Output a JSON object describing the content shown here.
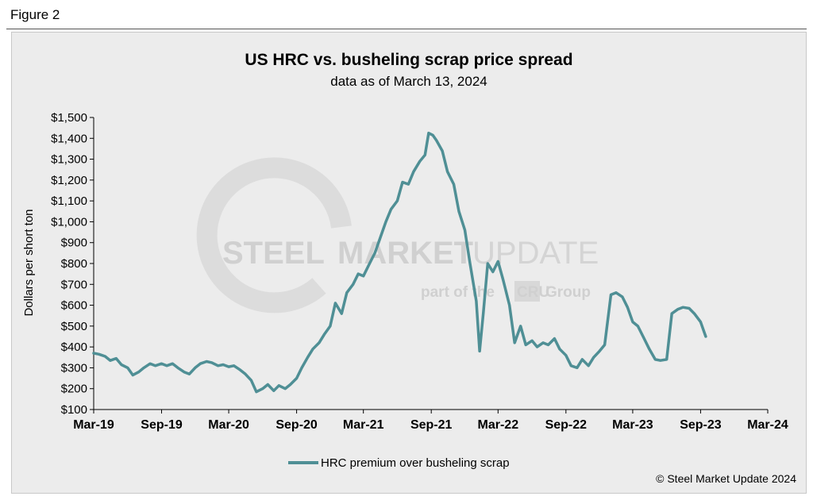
{
  "figure_label": "Figure 2",
  "copyright": "© Steel Market Update 2024",
  "watermark": {
    "brand_bold": "STEEL",
    "brand_mid": "MARKET",
    "brand_light": "UPDATE",
    "part_of": "part of the",
    "cru": "CRU",
    "group": "Group"
  },
  "colors": {
    "line": "#4f8f95",
    "panel": "#ececec"
  },
  "chart_data": {
    "type": "line",
    "title": "US HRC vs. busheling scrap price spread",
    "subtitle": "data as of March 13, 2024",
    "xlabel": "",
    "ylabel": "Dollars per short ton",
    "ylim": [
      100,
      1500
    ],
    "yticks": [
      100,
      200,
      300,
      400,
      500,
      600,
      700,
      800,
      900,
      1000,
      1100,
      1200,
      1300,
      1400,
      1500
    ],
    "ytick_labels": [
      "$100",
      "$200",
      "$300",
      "$400",
      "$500",
      "$600",
      "$700",
      "$800",
      "$900",
      "$1,000",
      "$1,100",
      "$1,200",
      "$1,300",
      "$1,400",
      "$1,500"
    ],
    "xlim": [
      "2019-03",
      "2024-03"
    ],
    "xticks": [
      "2019-03",
      "2019-09",
      "2020-03",
      "2020-09",
      "2021-03",
      "2021-09",
      "2022-03",
      "2022-09",
      "2023-03",
      "2023-09",
      "2024-03"
    ],
    "xtick_labels": [
      "Mar-19",
      "Sep-19",
      "Mar-20",
      "Sep-20",
      "Mar-21",
      "Sep-21",
      "Mar-22",
      "Sep-22",
      "Mar-23",
      "Sep-23",
      "Mar-24"
    ],
    "grid": false,
    "legend_position": "bottom-center",
    "series": [
      {
        "name": "HRC premium over busheling scrap",
        "color": "#4f8f95",
        "points": [
          [
            "2019-03-01",
            370
          ],
          [
            "2019-03-15",
            365
          ],
          [
            "2019-04-01",
            355
          ],
          [
            "2019-04-15",
            335
          ],
          [
            "2019-05-01",
            345
          ],
          [
            "2019-05-15",
            315
          ],
          [
            "2019-06-01",
            300
          ],
          [
            "2019-06-15",
            265
          ],
          [
            "2019-07-01",
            280
          ],
          [
            "2019-07-15",
            300
          ],
          [
            "2019-08-01",
            320
          ],
          [
            "2019-08-15",
            310
          ],
          [
            "2019-09-01",
            320
          ],
          [
            "2019-09-15",
            310
          ],
          [
            "2019-10-01",
            320
          ],
          [
            "2019-10-15",
            300
          ],
          [
            "2019-11-01",
            280
          ],
          [
            "2019-11-15",
            270
          ],
          [
            "2019-12-01",
            300
          ],
          [
            "2019-12-15",
            320
          ],
          [
            "2020-01-01",
            330
          ],
          [
            "2020-01-15",
            325
          ],
          [
            "2020-02-01",
            310
          ],
          [
            "2020-02-15",
            315
          ],
          [
            "2020-03-01",
            305
          ],
          [
            "2020-03-15",
            310
          ],
          [
            "2020-04-01",
            290
          ],
          [
            "2020-04-15",
            270
          ],
          [
            "2020-05-01",
            240
          ],
          [
            "2020-05-15",
            185
          ],
          [
            "2020-06-01",
            200
          ],
          [
            "2020-06-15",
            220
          ],
          [
            "2020-07-01",
            190
          ],
          [
            "2020-07-15",
            215
          ],
          [
            "2020-08-01",
            200
          ],
          [
            "2020-08-15",
            220
          ],
          [
            "2020-09-01",
            250
          ],
          [
            "2020-09-15",
            300
          ],
          [
            "2020-10-01",
            350
          ],
          [
            "2020-10-15",
            390
          ],
          [
            "2020-11-01",
            420
          ],
          [
            "2020-11-15",
            460
          ],
          [
            "2020-12-01",
            500
          ],
          [
            "2020-12-15",
            610
          ],
          [
            "2021-01-01",
            560
          ],
          [
            "2021-01-15",
            660
          ],
          [
            "2021-02-01",
            700
          ],
          [
            "2021-02-15",
            750
          ],
          [
            "2021-03-01",
            740
          ],
          [
            "2021-03-15",
            790
          ],
          [
            "2021-04-01",
            850
          ],
          [
            "2021-04-15",
            920
          ],
          [
            "2021-05-01",
            1000
          ],
          [
            "2021-05-15",
            1060
          ],
          [
            "2021-06-01",
            1100
          ],
          [
            "2021-06-15",
            1190
          ],
          [
            "2021-07-01",
            1180
          ],
          [
            "2021-07-15",
            1240
          ],
          [
            "2021-08-01",
            1290
          ],
          [
            "2021-08-15",
            1320
          ],
          [
            "2021-08-25",
            1425
          ],
          [
            "2021-09-05",
            1415
          ],
          [
            "2021-09-15",
            1390
          ],
          [
            "2021-10-01",
            1340
          ],
          [
            "2021-10-15",
            1240
          ],
          [
            "2021-11-01",
            1180
          ],
          [
            "2021-11-15",
            1050
          ],
          [
            "2021-12-01",
            960
          ],
          [
            "2021-12-15",
            800
          ],
          [
            "2022-01-01",
            620
          ],
          [
            "2022-01-10",
            380
          ],
          [
            "2022-01-20",
            560
          ],
          [
            "2022-02-01",
            800
          ],
          [
            "2022-02-15",
            760
          ],
          [
            "2022-03-01",
            810
          ],
          [
            "2022-03-15",
            720
          ],
          [
            "2022-04-01",
            600
          ],
          [
            "2022-04-15",
            420
          ],
          [
            "2022-05-01",
            500
          ],
          [
            "2022-05-15",
            410
          ],
          [
            "2022-06-01",
            430
          ],
          [
            "2022-06-15",
            400
          ],
          [
            "2022-07-01",
            420
          ],
          [
            "2022-07-15",
            410
          ],
          [
            "2022-08-01",
            440
          ],
          [
            "2022-08-15",
            390
          ],
          [
            "2022-09-01",
            360
          ],
          [
            "2022-09-15",
            310
          ],
          [
            "2022-10-01",
            300
          ],
          [
            "2022-10-15",
            340
          ],
          [
            "2022-11-01",
            310
          ],
          [
            "2022-11-15",
            350
          ],
          [
            "2022-12-01",
            380
          ],
          [
            "2022-12-15",
            410
          ],
          [
            "2023-01-01",
            650
          ],
          [
            "2023-01-15",
            660
          ],
          [
            "2023-02-01",
            640
          ],
          [
            "2023-02-15",
            590
          ],
          [
            "2023-03-01",
            520
          ],
          [
            "2023-03-15",
            500
          ],
          [
            "2023-04-01",
            440
          ],
          [
            "2023-04-15",
            390
          ],
          [
            "2023-05-01",
            340
          ],
          [
            "2023-05-15",
            335
          ],
          [
            "2023-06-01",
            340
          ],
          [
            "2023-06-15",
            560
          ],
          [
            "2023-07-01",
            580
          ],
          [
            "2023-07-15",
            590
          ],
          [
            "2023-08-01",
            585
          ],
          [
            "2023-08-15",
            560
          ],
          [
            "2023-09-01",
            520
          ],
          [
            "2023-09-15",
            450
          ]
        ]
      }
    ]
  }
}
